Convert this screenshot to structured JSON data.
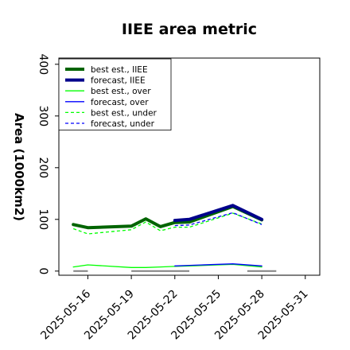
{
  "chart_data": {
    "type": "line",
    "title": "IIEE area metric",
    "xlabel": "",
    "ylabel": "Area (1000km2)",
    "ylim": [
      -8,
      412
    ],
    "xlim": [
      "2025-05-14",
      "2025-06-01"
    ],
    "grid": false,
    "legend_position": "top-left",
    "y_ticks": [
      0,
      100,
      200,
      300,
      400
    ],
    "x_ticks": [
      "2025-05-16",
      "2025-05-19",
      "2025-05-22",
      "2025-05-25",
      "2025-05-28",
      "2025-05-31"
    ],
    "x_tick_colors": [
      "#000000",
      "#000000",
      "#008000",
      "#000000",
      "#000000",
      "#000000"
    ],
    "baseline_segments": [
      {
        "start": "2025-05-15",
        "end": "2025-05-16"
      },
      {
        "start": "2025-05-19",
        "end": "2025-05-23"
      },
      {
        "start": "2025-05-27",
        "end": "2025-05-29"
      }
    ],
    "series": [
      {
        "name": "best est., IIEE",
        "color": "#006400",
        "style": "solid",
        "width": 4,
        "points": [
          [
            "2025-05-15",
            90
          ],
          [
            "2025-05-16",
            84
          ],
          [
            "2025-05-19",
            87
          ],
          [
            "2025-05-20",
            101
          ],
          [
            "2025-05-21",
            86
          ],
          [
            "2025-05-22",
            94
          ],
          [
            "2025-05-23",
            95
          ],
          [
            "2025-05-26",
            125
          ],
          [
            "2025-05-28",
            99
          ]
        ]
      },
      {
        "name": "forecast, IIEE",
        "color": "#00008b",
        "style": "solid",
        "width": 4,
        "points": [
          [
            "2025-05-22",
            98
          ],
          [
            "2025-05-23",
            100
          ],
          [
            "2025-05-26",
            127
          ],
          [
            "2025-05-28",
            100
          ]
        ]
      },
      {
        "name": "best est., over",
        "color": "#00ff00",
        "style": "solid",
        "width": 1.3,
        "points": [
          [
            "2025-05-15",
            8
          ],
          [
            "2025-05-16",
            12
          ],
          [
            "2025-05-19",
            7
          ],
          [
            "2025-05-20",
            7
          ],
          [
            "2025-05-21",
            8
          ],
          [
            "2025-05-22",
            9
          ],
          [
            "2025-05-23",
            10
          ],
          [
            "2025-05-26",
            13
          ],
          [
            "2025-05-28",
            8
          ]
        ]
      },
      {
        "name": "forecast, over",
        "color": "#0000ff",
        "style": "solid",
        "width": 1.3,
        "points": [
          [
            "2025-05-22",
            10
          ],
          [
            "2025-05-23",
            11
          ],
          [
            "2025-05-26",
            14
          ],
          [
            "2025-05-28",
            10
          ]
        ]
      },
      {
        "name": "best est., under",
        "color": "#00ff00",
        "style": "dashed",
        "width": 1.3,
        "points": [
          [
            "2025-05-15",
            82
          ],
          [
            "2025-05-16",
            72
          ],
          [
            "2025-05-19",
            80
          ],
          [
            "2025-05-20",
            95
          ],
          [
            "2025-05-21",
            78
          ],
          [
            "2025-05-22",
            85
          ],
          [
            "2025-05-23",
            85
          ],
          [
            "2025-05-26",
            112
          ],
          [
            "2025-05-28",
            91
          ]
        ]
      },
      {
        "name": "forecast, under",
        "color": "#0000ff",
        "style": "dashed",
        "width": 1.3,
        "points": [
          [
            "2025-05-22",
            88
          ],
          [
            "2025-05-23",
            89
          ],
          [
            "2025-05-26",
            113
          ],
          [
            "2025-05-28",
            90
          ]
        ]
      }
    ]
  }
}
